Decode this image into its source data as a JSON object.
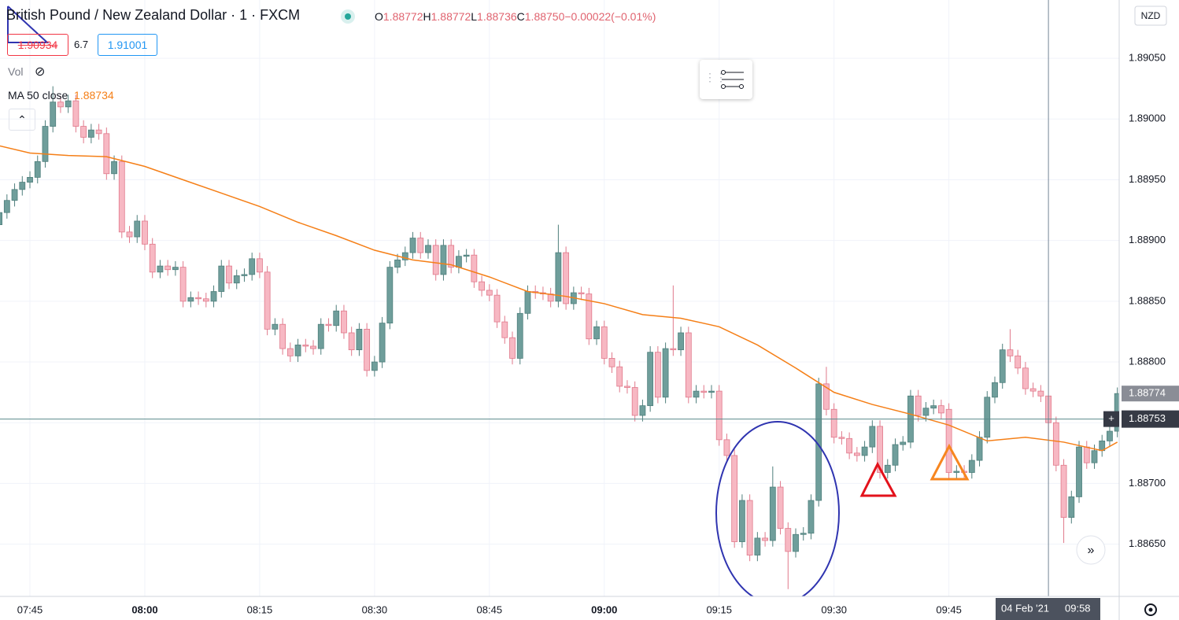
{
  "chart_data": {
    "type": "candlestick",
    "title": "British Pound / New Zealand Dollar · 1 · FXCM",
    "header": {
      "ohlc": [
        {
          "key": "O",
          "value": 1.88772
        },
        {
          "key": "H",
          "value": 1.88772
        },
        {
          "key": "L",
          "value": 1.88736
        },
        {
          "key": "C",
          "value": 1.8875,
          "label": "1.88750"
        }
      ],
      "change": {
        "value": -0.00022,
        "label": "−0.00022"
      },
      "change_pct": {
        "value": -0.01,
        "label": "(−0.01%)"
      }
    },
    "sell": 1.90934,
    "spread": 6.7,
    "buy": 1.91001,
    "vol": "Vol",
    "ma_value": 1.88734,
    "currency": "NZD",
    "x": [
      "07:41",
      "07:42",
      "07:43",
      "07:44",
      "07:45",
      "07:46",
      "07:47",
      "07:48",
      "07:49",
      "07:50",
      "07:51",
      "07:52",
      "07:53",
      "07:54",
      "07:55",
      "07:56",
      "07:57",
      "07:58",
      "07:59",
      "08:00",
      "08:01",
      "08:02",
      "08:03",
      "08:04",
      "08:05",
      "08:06",
      "08:07",
      "08:08",
      "08:09",
      "08:10",
      "08:11",
      "08:12",
      "08:13",
      "08:14",
      "08:15",
      "08:16",
      "08:17",
      "08:18",
      "08:19",
      "08:20",
      "08:21",
      "08:22",
      "08:23",
      "08:24",
      "08:25",
      "08:26",
      "08:27",
      "08:28",
      "08:29",
      "08:30",
      "08:31",
      "08:32",
      "08:33",
      "08:34",
      "08:35",
      "08:36",
      "08:37",
      "08:38",
      "08:39",
      "08:40",
      "08:41",
      "08:42",
      "08:43",
      "08:44",
      "08:45",
      "08:46",
      "08:47",
      "08:48",
      "08:49",
      "08:50",
      "08:51",
      "08:52",
      "08:53",
      "08:54",
      "08:55",
      "08:56",
      "08:57",
      "08:58",
      "08:59",
      "09:00",
      "09:01",
      "09:02",
      "09:03",
      "09:04",
      "09:05",
      "09:06",
      "09:07",
      "09:08",
      "09:09",
      "09:10",
      "09:11",
      "09:12",
      "09:13",
      "09:14",
      "09:15",
      "09:16",
      "09:17",
      "09:18",
      "09:19",
      "09:20",
      "09:21",
      "09:22",
      "09:23",
      "09:24",
      "09:25",
      "09:26",
      "09:27",
      "09:28",
      "09:29",
      "09:30",
      "09:31",
      "09:32",
      "09:33",
      "09:34",
      "09:35",
      "09:36",
      "09:37",
      "09:38",
      "09:39",
      "09:40",
      "09:41",
      "09:42",
      "09:43",
      "09:44",
      "09:45",
      "09:46",
      "09:47",
      "09:48",
      "09:49",
      "09:50",
      "09:51",
      "09:52",
      "09:53",
      "09:54",
      "09:55",
      "09:56",
      "09:57",
      "09:58",
      "09:59",
      "10:00",
      "10:01",
      "10:02",
      "10:03",
      "10:04",
      "10:05",
      "10:06",
      "10:07"
    ],
    "open": [
      1.88913,
      1.88923,
      1.88933,
      1.88942,
      1.88948,
      1.88952,
      1.88965,
      1.88994,
      1.89014,
      1.8901,
      1.89015,
      1.88994,
      1.88985,
      1.88991,
      1.88988,
      1.88955,
      1.88965,
      1.88907,
      1.88903,
      1.88916,
      1.88897,
      1.88874,
      1.88879,
      1.88876,
      1.88878,
      1.8885,
      1.88853,
      1.88852,
      1.8885,
      1.88858,
      1.88879,
      1.88865,
      1.88871,
      1.88872,
      1.88885,
      1.88874,
      1.88827,
      1.88831,
      1.88811,
      1.88805,
      1.88814,
      1.88813,
      1.88811,
      1.88831,
      1.8883,
      1.88842,
      1.88824,
      1.8881,
      1.88827,
      1.88793,
      1.888,
      1.88832,
      1.88878,
      1.88884,
      1.8889,
      1.88902,
      1.8889,
      1.88896,
      1.88872,
      1.88896,
      1.88878,
      1.88887,
      1.88888,
      1.88866,
      1.88859,
      1.88855,
      1.88833,
      1.8882,
      1.88803,
      1.8884,
      1.88858,
      1.88857,
      1.88856,
      1.8885,
      1.8889,
      1.88848,
      1.88857,
      1.88856,
      1.88819,
      1.88829,
      1.88803,
      1.88796,
      1.8878,
      1.88779,
      1.88756,
      1.88764,
      1.88808,
      1.88771,
      1.88811,
      1.8881,
      1.88824,
      1.88771,
      1.88776,
      1.88775,
      1.88776,
      1.88736,
      1.88723,
      1.88652,
      1.88686,
      1.88641,
      1.88655,
      1.88653,
      1.88697,
      1.88663,
      1.88644,
      1.88658,
      1.88659,
      1.88686,
      1.88782,
      1.88761,
      1.88738,
      1.88737,
      1.88725,
      1.88723,
      1.8873,
      1.88747,
      1.88709,
      1.88715,
      1.88732,
      1.88734,
      1.88772,
      1.88756,
      1.88762,
      1.88764,
      1.88761,
      1.88709,
      1.8871,
      1.88709,
      1.88719,
      1.88738,
      1.88771,
      1.88783,
      1.8881,
      1.88805,
      1.88795,
      1.88778,
      1.88776,
      1.88772,
      1.8875,
      1.88715,
      1.88672,
      1.88689,
      1.8873,
      1.88717,
      1.88727,
      1.88735,
      1.88743
    ],
    "high": [
      1.88928,
      1.88938,
      1.88947,
      1.88953,
      1.88957,
      1.8897,
      1.88999,
      1.89027,
      1.89019,
      1.8902,
      1.8902,
      1.88999,
      1.88996,
      1.88996,
      1.88993,
      1.8897,
      1.8897,
      1.88912,
      1.88921,
      1.88921,
      1.88902,
      1.88884,
      1.88884,
      1.88883,
      1.88883,
      1.88858,
      1.88858,
      1.88857,
      1.88863,
      1.88884,
      1.88884,
      1.88876,
      1.88877,
      1.8889,
      1.8889,
      1.88879,
      1.88836,
      1.88836,
      1.88816,
      1.88819,
      1.88819,
      1.88818,
      1.88836,
      1.88836,
      1.88847,
      1.88847,
      1.88829,
      1.88832,
      1.88832,
      1.88805,
      1.88837,
      1.88883,
      1.88889,
      1.88895,
      1.88907,
      1.88907,
      1.88901,
      1.88901,
      1.88901,
      1.88901,
      1.88892,
      1.88893,
      1.88893,
      1.88871,
      1.88864,
      1.8886,
      1.88838,
      1.88825,
      1.88845,
      1.88863,
      1.88863,
      1.88862,
      1.88861,
      1.88913,
      1.88895,
      1.88862,
      1.88862,
      1.88861,
      1.88834,
      1.88834,
      1.88808,
      1.88801,
      1.88785,
      1.88784,
      1.88769,
      1.88813,
      1.88813,
      1.88816,
      1.88863,
      1.88829,
      1.88829,
      1.88781,
      1.88781,
      1.88781,
      1.88781,
      1.88741,
      1.88728,
      1.88691,
      1.88691,
      1.8866,
      1.8866,
      1.88714,
      1.88702,
      1.88668,
      1.88663,
      1.88664,
      1.88691,
      1.88787,
      1.88796,
      1.88766,
      1.88743,
      1.88742,
      1.8873,
      1.88735,
      1.88752,
      1.88752,
      1.8872,
      1.88737,
      1.88739,
      1.88777,
      1.88777,
      1.88767,
      1.88769,
      1.88769,
      1.88766,
      1.88715,
      1.88715,
      1.88724,
      1.88743,
      1.88776,
      1.88788,
      1.88815,
      1.88827,
      1.8881,
      1.888,
      1.88783,
      1.88781,
      1.88772,
      1.88755,
      1.8872,
      1.88694,
      1.88735,
      1.88735,
      1.88732,
      1.8874,
      1.88748,
      1.88779
    ],
    "low": [
      1.88908,
      1.88918,
      1.88928,
      1.88937,
      1.88943,
      1.88947,
      1.8896,
      1.88989,
      1.89005,
      1.89005,
      1.88989,
      1.8898,
      1.8898,
      1.88983,
      1.8895,
      1.8895,
      1.88902,
      1.88898,
      1.88898,
      1.88892,
      1.88869,
      1.88869,
      1.88871,
      1.88871,
      1.88845,
      1.88845,
      1.88847,
      1.88845,
      1.88845,
      1.88853,
      1.8886,
      1.8886,
      1.88866,
      1.88867,
      1.88869,
      1.88822,
      1.88822,
      1.88806,
      1.888,
      1.888,
      1.88808,
      1.88806,
      1.88806,
      1.88825,
      1.88825,
      1.88819,
      1.88805,
      1.88805,
      1.88788,
      1.88788,
      1.88795,
      1.88827,
      1.88873,
      1.88879,
      1.88885,
      1.88885,
      1.88885,
      1.88867,
      1.88867,
      1.88873,
      1.88873,
      1.88882,
      1.88861,
      1.88854,
      1.8885,
      1.88828,
      1.88815,
      1.88798,
      1.88798,
      1.88835,
      1.88852,
      1.88851,
      1.88845,
      1.88845,
      1.88843,
      1.88843,
      1.88851,
      1.88814,
      1.88814,
      1.88798,
      1.88791,
      1.88775,
      1.88774,
      1.88751,
      1.88751,
      1.88759,
      1.88766,
      1.88766,
      1.88805,
      1.88805,
      1.88766,
      1.88766,
      1.8877,
      1.8877,
      1.88731,
      1.88718,
      1.88647,
      1.88647,
      1.88636,
      1.88636,
      1.88648,
      1.88648,
      1.88658,
      1.88613,
      1.88639,
      1.88653,
      1.88654,
      1.88681,
      1.88756,
      1.88733,
      1.88732,
      1.8872,
      1.88718,
      1.88718,
      1.88725,
      1.88704,
      1.88704,
      1.8871,
      1.88727,
      1.88729,
      1.88751,
      1.88751,
      1.88757,
      1.88753,
      1.88704,
      1.88704,
      1.88704,
      1.88704,
      1.88714,
      1.88733,
      1.88766,
      1.88778,
      1.888,
      1.8879,
      1.88773,
      1.88771,
      1.88767,
      1.88736,
      1.8871,
      1.88651,
      1.88667,
      1.88684,
      1.88712,
      1.88712,
      1.88722,
      1.8873,
      1.88738
    ],
    "close": [
      1.88923,
      1.88933,
      1.88942,
      1.88948,
      1.88952,
      1.88965,
      1.88994,
      1.89014,
      1.8901,
      1.89015,
      1.88994,
      1.88985,
      1.88991,
      1.88988,
      1.88955,
      1.88965,
      1.88907,
      1.88903,
      1.88916,
      1.88897,
      1.88874,
      1.88879,
      1.88876,
      1.88878,
      1.8885,
      1.88853,
      1.88852,
      1.8885,
      1.88858,
      1.88879,
      1.88865,
      1.88871,
      1.88872,
      1.88885,
      1.88874,
      1.88827,
      1.88831,
      1.88811,
      1.88805,
      1.88814,
      1.88813,
      1.88811,
      1.88831,
      1.8883,
      1.88842,
      1.88824,
      1.8881,
      1.88827,
      1.88793,
      1.888,
      1.88832,
      1.88878,
      1.88884,
      1.8889,
      1.88902,
      1.8889,
      1.88896,
      1.88872,
      1.88896,
      1.88878,
      1.88887,
      1.88888,
      1.88866,
      1.88859,
      1.88855,
      1.88833,
      1.8882,
      1.88803,
      1.8884,
      1.88858,
      1.88857,
      1.88856,
      1.8885,
      1.8889,
      1.88848,
      1.88857,
      1.88856,
      1.88819,
      1.88829,
      1.88803,
      1.88796,
      1.8878,
      1.88779,
      1.88756,
      1.88764,
      1.88808,
      1.88771,
      1.88811,
      1.8881,
      1.88824,
      1.88771,
      1.88776,
      1.88775,
      1.88776,
      1.88736,
      1.88723,
      1.88652,
      1.88686,
      1.88641,
      1.88655,
      1.88653,
      1.88697,
      1.88663,
      1.88644,
      1.88658,
      1.88659,
      1.88686,
      1.88782,
      1.88761,
      1.88738,
      1.88737,
      1.88725,
      1.88723,
      1.8873,
      1.88747,
      1.88709,
      1.88715,
      1.88732,
      1.88734,
      1.88772,
      1.88756,
      1.88762,
      1.88764,
      1.88758,
      1.88709,
      1.8871,
      1.88709,
      1.88719,
      1.88738,
      1.88771,
      1.88783,
      1.8881,
      1.88805,
      1.88795,
      1.88778,
      1.88776,
      1.88772,
      1.8875,
      1.88715,
      1.88672,
      1.88689,
      1.8873,
      1.88717,
      1.88727,
      1.88735,
      1.88743,
      1.88774
    ],
    "up_color": "#6f9e9b",
    "down_color": "#f7b8c3",
    "series": [
      {
        "name": "MA 50 close",
        "color": "#f57f17",
        "x": [
          "07:41",
          "07:45",
          "07:50",
          "07:55",
          "08:00",
          "08:05",
          "08:10",
          "08:15",
          "08:20",
          "08:25",
          "08:30",
          "08:35",
          "08:40",
          "08:45",
          "08:50",
          "08:55",
          "09:00",
          "09:05",
          "09:10",
          "09:15",
          "09:20",
          "09:25",
          "09:30",
          "09:35",
          "09:40",
          "09:45",
          "09:50",
          "09:55",
          "10:00",
          "10:05",
          "10:07"
        ],
        "values": [
          1.88978,
          1.88972,
          1.8897,
          1.88969,
          1.88961,
          1.8895,
          1.88939,
          1.88928,
          1.88915,
          1.88904,
          1.88892,
          1.88884,
          1.8888,
          1.8887,
          1.88858,
          1.88854,
          1.88848,
          1.88839,
          1.88836,
          1.88829,
          1.88814,
          1.88795,
          1.88775,
          1.88765,
          1.88757,
          1.88748,
          1.88735,
          1.88738,
          1.88734,
          1.88727,
          1.88734
        ]
      }
    ],
    "ylim": [
      1.88607,
      1.89098
    ],
    "yticks": [
      {
        "value": 1.8865,
        "label": "1.88650"
      },
      {
        "value": 1.887,
        "label": "1.88700"
      },
      {
        "value": 1.8875,
        "label": "1.88750"
      },
      {
        "value": 1.888,
        "label": "1.88800"
      },
      {
        "value": 1.8885,
        "label": "1.88850"
      },
      {
        "value": 1.889,
        "label": "1.88900"
      },
      {
        "value": 1.8895,
        "label": "1.88950"
      },
      {
        "value": 1.89,
        "label": "1.89000"
      },
      {
        "value": 1.8905,
        "label": "1.89050"
      }
    ],
    "xticks": [
      "07:45",
      "08:00",
      "08:15",
      "08:30",
      "08:45",
      "09:00",
      "09:15",
      "09:30",
      "09:45"
    ],
    "last_price": 1.88774,
    "crosshair": {
      "price": 1.88753,
      "date": "04 Feb '21",
      "time": "09:58"
    },
    "grid": true
  }
}
